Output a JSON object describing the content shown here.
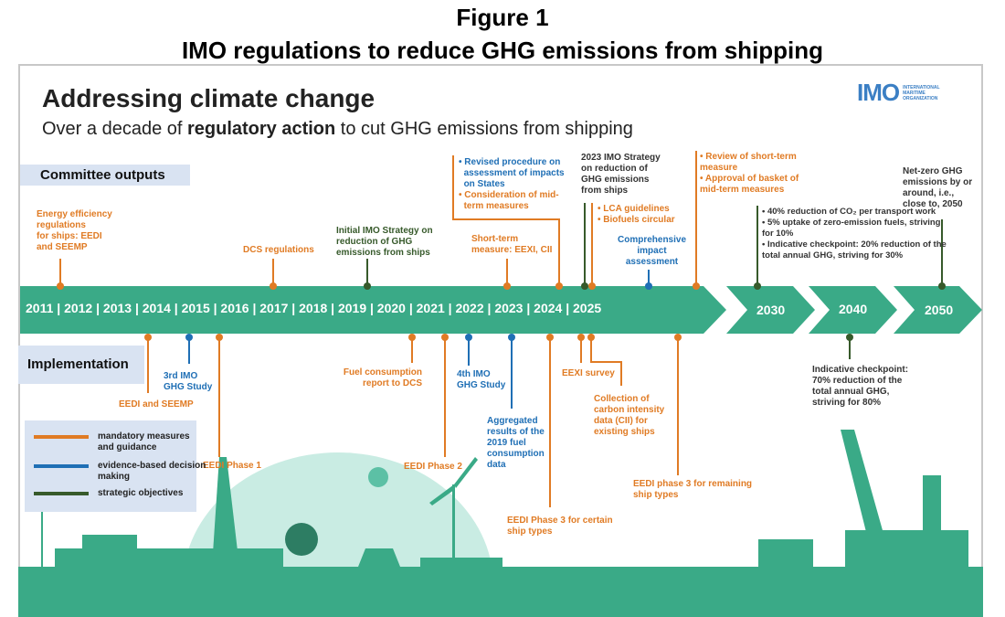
{
  "figure": {
    "label": "Figure 1",
    "title": "IMO regulations to reduce GHG emissions from shipping"
  },
  "header": {
    "title": "Addressing climate change",
    "subtitle_pre": "Over a decade of ",
    "subtitle_bold": "regulatory action",
    "subtitle_post": " to cut GHG emissions from shipping"
  },
  "logo": {
    "text": "IMO",
    "org": [
      "INTERNATIONAL",
      "MARITIME",
      "ORGANIZATION"
    ]
  },
  "sections": {
    "committee": "Committee outputs",
    "implementation": "Implementation"
  },
  "timeline": {
    "years": "2011 | 2012 | 2013 | 2014 | 2015 | 2016 | 2017 | 2018 | 2019 | 2020 | 2021 | 2022 | 2023 | 2024 | 2025",
    "milestones": [
      "2030",
      "2040",
      "2050"
    ]
  },
  "committee_outputs": {
    "energy_efficiency": [
      "Energy efficiency",
      "regulations",
      "for ships: EEDI",
      "and SEEMP"
    ],
    "dcs": "DCS regulations",
    "initial_strategy": [
      "Initial IMO Strategy on",
      "reduction of GHG",
      "emissions from ships"
    ],
    "short_term": [
      "Short-term",
      "measure: EEXI,  CII"
    ],
    "revised": {
      "blue": [
        "Revised procedure on",
        "assessment of impacts",
        "on States"
      ],
      "orange": [
        "Consideration of mid-",
        "term measures"
      ]
    },
    "strategy_2023": [
      "2023 IMO Strategy",
      "on reduction of",
      "GHG  emissions",
      "from ships"
    ],
    "lca": [
      "LCA guidelines",
      "Biofuels circular"
    ],
    "impact": [
      "Comprehensive",
      "impact",
      "assessment"
    ],
    "review": [
      "Review of short-term measure",
      "Approval of basket of mid-term measures"
    ],
    "goals_2030": [
      "40% reduction of CO₂ per transport work",
      "5% uptake of zero-emission fuels, striving for 10%",
      "Indicative checkpoint: 20% reduction of the total annual GHG, striving for 30%"
    ],
    "netzero": [
      "Net-zero GHG",
      "emissions by or",
      "around, i.e.,",
      "close to, 2050"
    ]
  },
  "implementation": {
    "eedi_seemp": "EEDI and SEEMP",
    "ghg3": [
      "3rd IMO",
      "GHG  Study"
    ],
    "eedi1": "EEDI  Phase 1",
    "fuel_report": [
      "Fuel consumption",
      "report to DCS"
    ],
    "eedi2": "EEDI  Phase 2",
    "ghg4": [
      "4th IMO",
      "GHG  Study"
    ],
    "aggregated": [
      "Aggregated",
      "results of the",
      "2019 fuel",
      "consumption",
      "data"
    ],
    "eedi3_certain": [
      "EEDI  Phase 3 for certain",
      "ship types"
    ],
    "eexi_survey": "EEXI  survey",
    "cii": [
      "Collection of",
      "carbon intensity",
      "data (CII)  for",
      "existing ships"
    ],
    "eedi3_remaining": [
      "EEDI  phase 3 for remaining",
      "ship types"
    ],
    "checkpoint_2040": [
      "Indicative  checkpoint:",
      "70% reduction of the",
      "total annual GHG,",
      "striving for 80%"
    ]
  },
  "legend": [
    {
      "label": "mandatory measures and guidance",
      "color": "#e07b24"
    },
    {
      "label": "evidence-based decision making",
      "color": "#1f6fb5"
    },
    {
      "label": "strategic objectives",
      "color": "#375a2b"
    }
  ],
  "colors": {
    "teal": "#3aaa87",
    "orange": "#e07b24",
    "blue": "#1f6fb5",
    "green": "#375a2b"
  }
}
